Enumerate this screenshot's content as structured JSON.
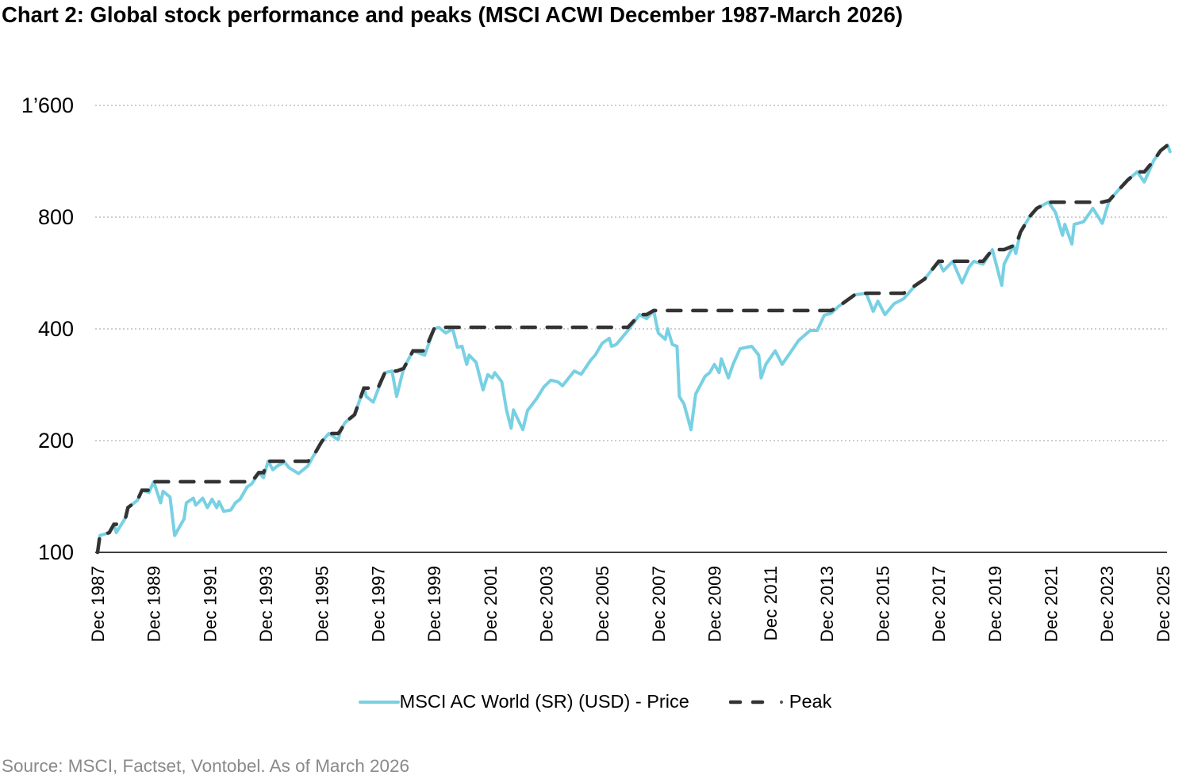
{
  "title": "Chart 2: Global stock performance and peaks (MSCI ACWI December 1987-March 2026)",
  "source": "Source: MSCI, Factset, Vontobel. As of March 2026",
  "legend": {
    "price": "MSCI AC World (SR) (USD) - Price",
    "peak": "Peak"
  },
  "colors": {
    "price": "#78d0e3",
    "peak": "#333333",
    "grid": "#b0b0b0"
  },
  "chart_data": {
    "type": "line",
    "title": "Chart 2: Global stock performance and peaks (MSCI ACWI December 1987-March 2026)",
    "xlabel": "",
    "ylabel": "",
    "y_scale": "log",
    "ylim": [
      100,
      1600
    ],
    "y_ticks": [
      100,
      200,
      400,
      800,
      1600
    ],
    "y_tick_labels": [
      "100",
      "200",
      "400",
      "800",
      "1’600"
    ],
    "x_range": [
      "1987-12",
      "2026-03"
    ],
    "x_ticks": [
      "1987-12",
      "1989-12",
      "1991-12",
      "1993-12",
      "1995-12",
      "1997-12",
      "1999-12",
      "2001-12",
      "2003-12",
      "2005-12",
      "2007-12",
      "2009-12",
      "2011-12",
      "2013-12",
      "2015-12",
      "2017-12",
      "2019-12",
      "2021-12",
      "2023-12",
      "2025-12"
    ],
    "x_tick_labels": [
      "Dec 1987",
      "Dec 1989",
      "Dec 1991",
      "Dec 1993",
      "Dec 1995",
      "Dec 1997",
      "Dec 1999",
      "Dec 2001",
      "Dec 2003",
      "Dec 2005",
      "Dec 2007",
      "Dec 2009",
      "Dec 2011",
      "Dec 2013",
      "Dec 2015",
      "Dec 2017",
      "Dec 2019",
      "Dec 2021",
      "Dec 2023",
      "Dec 2025"
    ],
    "grid": "horizontal dotted",
    "legend_position": "bottom",
    "series": [
      {
        "name": "MSCI AC World (SR) (USD) - Price",
        "style": "solid",
        "x": [
          "1987-12",
          "1988-01",
          "1988-05",
          "1988-07",
          "1988-08",
          "1988-12",
          "1989-01",
          "1989-05",
          "1989-07",
          "1989-10",
          "1989-12",
          "1990-03",
          "1990-04",
          "1990-07",
          "1990-09",
          "1990-11",
          "1991-01",
          "1991-02",
          "1991-05",
          "1991-06",
          "1991-09",
          "1991-11",
          "1992-01",
          "1992-03",
          "1992-04",
          "1992-06",
          "1992-09",
          "1992-11",
          "1993-01",
          "1993-04",
          "1993-06",
          "1993-09",
          "1993-11",
          "1994-01",
          "1994-03",
          "1994-05",
          "1994-08",
          "1994-10",
          "1995-02",
          "1995-06",
          "1995-08",
          "1995-12",
          "1996-03",
          "1996-07",
          "1996-08",
          "1996-10",
          "1997-02",
          "1997-06",
          "1997-07",
          "1997-10",
          "1997-12",
          "1998-03",
          "1998-06",
          "1998-08",
          "1998-11",
          "1999-03",
          "1999-08",
          "1999-12",
          "2000-02",
          "2000-05",
          "2000-08",
          "2000-10",
          "2000-12",
          "2001-02",
          "2001-03",
          "2001-06",
          "2001-09",
          "2001-11",
          "2002-01",
          "2002-02",
          "2002-05",
          "2002-07",
          "2002-09",
          "2002-10",
          "2003-02",
          "2003-04",
          "2003-08",
          "2003-11",
          "2004-02",
          "2004-05",
          "2004-07",
          "2004-12",
          "2005-03",
          "2005-07",
          "2005-09",
          "2005-12",
          "2006-03",
          "2006-04",
          "2006-06",
          "2006-11",
          "2007-04",
          "2007-07",
          "2007-10",
          "2007-12",
          "2008-03",
          "2008-04",
          "2008-06",
          "2008-08",
          "2008-09",
          "2008-11",
          "2009-02",
          "2009-04",
          "2009-08",
          "2009-10",
          "2009-12",
          "2010-02",
          "2010-03",
          "2010-06",
          "2010-08",
          "2010-11",
          "2011-04",
          "2011-07",
          "2011-08",
          "2011-10",
          "2012-02",
          "2012-05",
          "2012-09",
          "2012-12",
          "2013-05",
          "2013-08",
          "2013-11",
          "2014-02",
          "2014-05",
          "2014-12",
          "2015-05",
          "2015-08",
          "2015-10",
          "2016-01",
          "2016-05",
          "2016-09",
          "2017-02",
          "2017-06",
          "2017-12",
          "2018-02",
          "2018-06",
          "2018-10",
          "2019-01",
          "2019-03",
          "2019-07",
          "2019-11",
          "2020-03",
          "2020-04",
          "2020-08",
          "2020-09",
          "2020-11",
          "2021-03",
          "2021-06",
          "2021-11",
          "2022-02",
          "2022-05",
          "2022-06",
          "2022-09",
          "2022-10",
          "2023-02",
          "2023-06",
          "2023-10",
          "2024-01",
          "2024-04",
          "2024-09",
          "2025-01",
          "2025-04",
          "2025-08",
          "2025-11",
          "2026-02",
          "2026-03"
        ],
        "y": [
          100,
          111,
          113,
          119,
          113,
          124,
          132,
          138,
          147,
          145,
          155,
          136,
          146,
          141,
          111,
          117,
          123,
          136,
          140,
          134,
          140,
          132,
          139,
          132,
          137,
          129,
          130,
          136,
          139,
          150,
          153,
          164,
          159,
          176,
          167,
          171,
          175,
          169,
          163,
          171,
          180,
          199,
          209,
          201,
          213,
          224,
          235,
          277,
          263,
          254,
          274,
          305,
          308,
          263,
          313,
          349,
          340,
          400,
          404,
          390,
          400,
          357,
          359,
          321,
          340,
          325,
          274,
          301,
          295,
          305,
          288,
          242,
          216,
          242,
          214,
          241,
          260,
          279,
          291,
          288,
          281,
          308,
          302,
          329,
          340,
          366,
          377,
          359,
          363,
          396,
          437,
          426,
          448,
          390,
          375,
          400,
          363,
          359,
          263,
          251,
          214,
          267,
          298,
          305,
          321,
          305,
          332,
          295,
          321,
          354,
          359,
          340,
          295,
          321,
          349,
          321,
          349,
          372,
          396,
          396,
          435,
          441,
          459,
          494,
          499,
          446,
          475,
          437,
          468,
          482,
          524,
          545,
          608,
          573,
          608,
          532,
          587,
          608,
          598,
          654,
          524,
          598,
          670,
          638,
          729,
          804,
          845,
          878,
          824,
          715,
          765,
          677,
          765,
          777,
          845,
          770,
          887,
          932,
          1008,
          1059,
          995,
          1135,
          1209,
          1251,
          1201
        ]
      },
      {
        "name": "Peak",
        "style": "dashed",
        "derived_from": "running maximum of MSCI AC World (SR) (USD) - Price"
      }
    ]
  }
}
